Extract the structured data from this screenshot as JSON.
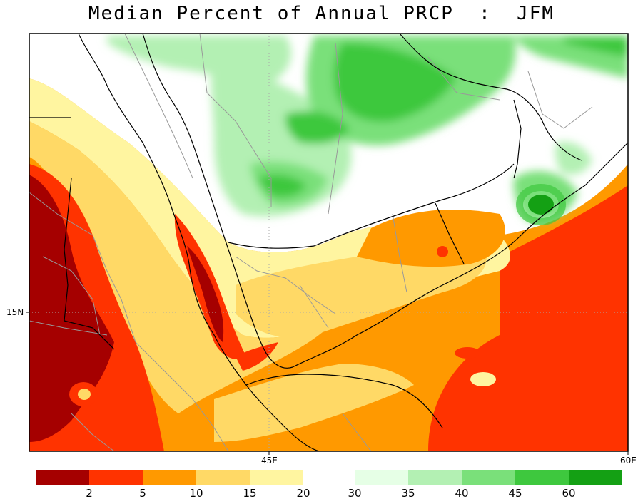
{
  "title": "Median Percent of Annual PRCP  :  JFM",
  "axes": {
    "lat_label": "15N",
    "lon_labels": [
      "45E",
      "60E"
    ]
  },
  "colorbar": {
    "low_segment": {
      "colors": [
        "#a50000",
        "#ff3300",
        "#ff9900",
        "#ffd966",
        "#fff5a0"
      ],
      "ticks": [
        "2",
        "5",
        "10",
        "15",
        "20"
      ]
    },
    "high_segment": {
      "colors": [
        "#e6ffe6",
        "#b3f0b3",
        "#7ae07a",
        "#3ec83e",
        "#14a014"
      ],
      "ticks": [
        "30",
        "35",
        "40",
        "45",
        "60"
      ]
    }
  },
  "palette": {
    "very_low": "#a50000",
    "low": "#ff3300",
    "medium_low": "#ff9900",
    "medium": "#ffd966",
    "light": "#fff5a0",
    "neutral": "#ffffff",
    "green_1": "#e6ffe6",
    "green_2": "#b3f0b3",
    "green_3": "#7ae07a",
    "green_4": "#3ec83e",
    "green_5": "#14a014"
  }
}
